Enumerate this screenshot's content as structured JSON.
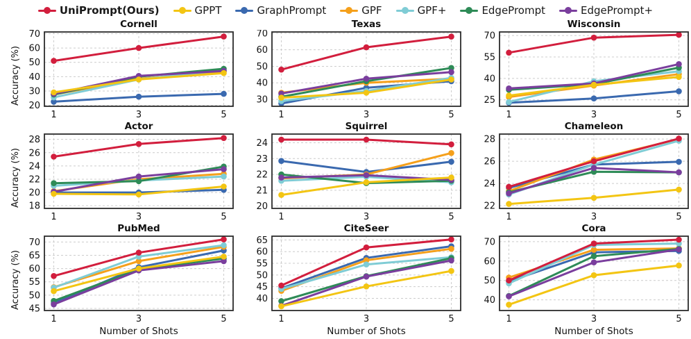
{
  "legend": {
    "items": [
      {
        "label": "UniPrompt(Ours)",
        "color": "#d21e3d"
      },
      {
        "label": "GPPT",
        "color": "#f3c513"
      },
      {
        "label": "GraphPrompt",
        "color": "#3a69af"
      },
      {
        "label": "GPF",
        "color": "#f5a01b"
      },
      {
        "label": "GPF+",
        "color": "#7fccd5"
      },
      {
        "label": "EdgePrompt",
        "color": "#2e8b57"
      },
      {
        "label": "EdgePrompt+",
        "color": "#7a3e9d"
      }
    ]
  },
  "axis": {
    "xlabel": "Number of Shots",
    "ylabel": "Accuracy (%)",
    "x_ticks": [
      1,
      3,
      5
    ]
  },
  "chart_data": [
    {
      "type": "line",
      "title": "Cornell",
      "ylim": [
        19.3,
        71.2
      ],
      "yticks": [
        20,
        30,
        40,
        50,
        60,
        70
      ],
      "series": [
        {
          "name": "UniPrompt(Ours)",
          "values": [
            51,
            60,
            68
          ]
        },
        {
          "name": "GPPT",
          "values": [
            29,
            38,
            42.5
          ]
        },
        {
          "name": "GraphPrompt",
          "values": [
            22.5,
            26,
            28
          ]
        },
        {
          "name": "GPF",
          "values": [
            27.5,
            38.5,
            43.5
          ]
        },
        {
          "name": "GPF+",
          "values": [
            25.5,
            38,
            44.5
          ]
        },
        {
          "name": "EdgePrompt",
          "values": [
            27.5,
            40,
            45.5
          ]
        },
        {
          "name": "EdgePrompt+",
          "values": [
            28,
            40.5,
            44
          ]
        }
      ]
    },
    {
      "type": "line",
      "title": "Texas",
      "ylim": [
        25.8,
        70.8
      ],
      "yticks": [
        30,
        40,
        50,
        60,
        70
      ],
      "series": [
        {
          "name": "UniPrompt(Ours)",
          "values": [
            48,
            61.5,
            68
          ]
        },
        {
          "name": "GPPT",
          "values": [
            31,
            34,
            42
          ]
        },
        {
          "name": "GraphPrompt",
          "values": [
            27.5,
            37,
            41
          ]
        },
        {
          "name": "GPF",
          "values": [
            34,
            40,
            42.5
          ]
        },
        {
          "name": "GPF+",
          "values": [
            29,
            35,
            43
          ]
        },
        {
          "name": "EdgePrompt",
          "values": [
            31.5,
            41,
            49
          ]
        },
        {
          "name": "EdgePrompt+",
          "values": [
            33.5,
            42.5,
            46.5
          ]
        }
      ]
    },
    {
      "type": "line",
      "title": "Wisconsin",
      "ylim": [
        20.5,
        72.5
      ],
      "yticks": [
        25,
        40,
        55,
        70
      ],
      "series": [
        {
          "name": "UniPrompt(Ours)",
          "values": [
            58,
            68.5,
            70.5
          ]
        },
        {
          "name": "GPPT",
          "values": [
            28,
            35.5,
            41
          ]
        },
        {
          "name": "GraphPrompt",
          "values": [
            23,
            26,
            31
          ]
        },
        {
          "name": "GPF",
          "values": [
            27,
            35,
            43
          ]
        },
        {
          "name": "GPF+",
          "values": [
            23.5,
            38,
            45
          ]
        },
        {
          "name": "EdgePrompt",
          "values": [
            32,
            36,
            47.5
          ]
        },
        {
          "name": "EdgePrompt+",
          "values": [
            33,
            36.5,
            50
          ]
        }
      ]
    },
    {
      "type": "line",
      "title": "Actor",
      "ylim": [
        17.6,
        28.8
      ],
      "yticks": [
        18,
        20,
        22,
        24,
        26,
        28
      ],
      "series": [
        {
          "name": "UniPrompt(Ours)",
          "values": [
            25.4,
            27.3,
            28.2
          ]
        },
        {
          "name": "GPPT",
          "values": [
            19.8,
            19.7,
            20.9
          ]
        },
        {
          "name": "GraphPrompt",
          "values": [
            20.0,
            20.0,
            20.4
          ]
        },
        {
          "name": "GPF",
          "values": [
            20.2,
            22.0,
            22.8
          ]
        },
        {
          "name": "GPF+",
          "values": [
            21.0,
            21.8,
            22.4
          ]
        },
        {
          "name": "EdgePrompt",
          "values": [
            21.4,
            21.7,
            23.9
          ]
        },
        {
          "name": "EdgePrompt+",
          "values": [
            20.1,
            22.4,
            23.5
          ]
        }
      ]
    },
    {
      "type": "line",
      "title": "Squirrel",
      "ylim": [
        19.85,
        24.55
      ],
      "yticks": [
        20,
        21,
        22,
        23,
        24
      ],
      "series": [
        {
          "name": "UniPrompt(Ours)",
          "values": [
            24.2,
            24.2,
            23.9
          ]
        },
        {
          "name": "GPPT",
          "values": [
            20.7,
            21.5,
            21.8
          ]
        },
        {
          "name": "GraphPrompt",
          "values": [
            22.85,
            22.15,
            22.8
          ]
        },
        {
          "name": "GPF",
          "values": [
            21.75,
            22.0,
            23.35
          ]
        },
        {
          "name": "GPF+",
          "values": [
            21.6,
            21.85,
            21.5
          ]
        },
        {
          "name": "EdgePrompt",
          "values": [
            22.0,
            21.45,
            21.6
          ]
        },
        {
          "name": "EdgePrompt+",
          "values": [
            21.8,
            21.95,
            21.65
          ]
        }
      ]
    },
    {
      "type": "line",
      "title": "Chameleon",
      "ylim": [
        21.75,
        28.45
      ],
      "yticks": [
        22,
        24,
        26,
        28
      ],
      "series": [
        {
          "name": "UniPrompt(Ours)",
          "values": [
            23.7,
            26.0,
            28.05
          ]
        },
        {
          "name": "GPPT",
          "values": [
            22.15,
            22.7,
            23.45
          ]
        },
        {
          "name": "GraphPrompt",
          "values": [
            23.6,
            25.7,
            25.95
          ]
        },
        {
          "name": "GPF",
          "values": [
            23.3,
            26.15,
            28.0
          ]
        },
        {
          "name": "GPF+",
          "values": [
            23.0,
            25.7,
            27.85
          ]
        },
        {
          "name": "EdgePrompt",
          "values": [
            23.2,
            25.05,
            25.0
          ]
        },
        {
          "name": "EdgePrompt+",
          "values": [
            23.1,
            25.4,
            25.0
          ]
        }
      ]
    },
    {
      "type": "line",
      "title": "PubMed",
      "ylim": [
        44.2,
        72.2
      ],
      "yticks": [
        45,
        50,
        55,
        60,
        65,
        70
      ],
      "series": [
        {
          "name": "UniPrompt(Ours)",
          "values": [
            57.2,
            66,
            71
          ]
        },
        {
          "name": "GPPT",
          "values": [
            51.5,
            60,
            64.5
          ]
        },
        {
          "name": "GraphPrompt",
          "values": [
            47,
            60.5,
            66.8
          ]
        },
        {
          "name": "GPF",
          "values": [
            53,
            62.8,
            68.2
          ]
        },
        {
          "name": "GPF+",
          "values": [
            52.8,
            64.5,
            68.8
          ]
        },
        {
          "name": "EdgePrompt",
          "values": [
            47.8,
            59.7,
            63.8
          ]
        },
        {
          "name": "EdgePrompt+",
          "values": [
            46.5,
            59.3,
            62.8
          ]
        }
      ]
    },
    {
      "type": "line",
      "title": "CiteSeer",
      "ylim": [
        34.8,
        66.6
      ],
      "yticks": [
        40,
        45,
        50,
        55,
        60,
        65
      ],
      "series": [
        {
          "name": "UniPrompt(Ours)",
          "values": [
            45.5,
            61.8,
            65.2
          ]
        },
        {
          "name": "GPPT",
          "values": [
            36.6,
            45.1,
            51.7
          ]
        },
        {
          "name": "GraphPrompt",
          "values": [
            44.3,
            57.3,
            62.3
          ]
        },
        {
          "name": "GPF",
          "values": [
            43.2,
            56.3,
            61.2
          ]
        },
        {
          "name": "GPF+",
          "values": [
            44.0,
            54.5,
            57.6
          ]
        },
        {
          "name": "EdgePrompt",
          "values": [
            38.8,
            49.5,
            57.2
          ]
        },
        {
          "name": "EdgePrompt+",
          "values": [
            36.8,
            49.3,
            56.2
          ]
        }
      ]
    },
    {
      "type": "line",
      "title": "Cora",
      "ylim": [
        34.5,
        72.8
      ],
      "yticks": [
        40,
        50,
        60,
        70
      ],
      "series": [
        {
          "name": "UniPrompt(Ours)",
          "values": [
            50,
            69,
            71
          ]
        },
        {
          "name": "GPPT",
          "values": [
            37.5,
            52.7,
            57.7
          ]
        },
        {
          "name": "GraphPrompt",
          "values": [
            49.5,
            64.5,
            65.2
          ]
        },
        {
          "name": "GPF",
          "values": [
            51.5,
            65.8,
            66.5
          ]
        },
        {
          "name": "GPF+",
          "values": [
            48.5,
            68.3,
            69
          ]
        },
        {
          "name": "EdgePrompt",
          "values": [
            42,
            62.5,
            66.2
          ]
        },
        {
          "name": "EdgePrompt+",
          "values": [
            41.8,
            59.3,
            66
          ]
        }
      ]
    }
  ]
}
